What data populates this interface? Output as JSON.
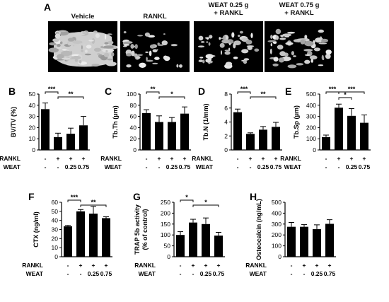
{
  "panel_a": {
    "letter": "A",
    "groups": [
      {
        "title_lines": [
          "Vehicle"
        ]
      },
      {
        "title_lines": [
          "RANKL"
        ]
      },
      {
        "title_lines": [
          "WEAT 0.25 g",
          "+ RANKL"
        ]
      },
      {
        "title_lines": [
          "WEAT 0.75 g",
          "+ RANKL"
        ]
      }
    ]
  },
  "treatment_rows": {
    "rankl_label": "RANKL",
    "weat_label": "WEAT",
    "rankl": [
      "-",
      "+",
      "+",
      "+"
    ],
    "weat": [
      "-",
      "-",
      "0.25",
      "0.75"
    ]
  },
  "colors": {
    "bar": "#000000",
    "axis": "#000000"
  },
  "chart_data": [
    {
      "panel": "B",
      "type": "bar",
      "ylabel": "BV/TV (%)",
      "ylim": [
        0,
        50
      ],
      "yticks": [
        0,
        10,
        20,
        30,
        40,
        50
      ],
      "values": [
        36.5,
        11.5,
        14.5,
        22
      ],
      "errors": [
        5.5,
        3.5,
        5,
        8
      ],
      "significance": [
        {
          "from": 0,
          "to": 1,
          "label": "***"
        },
        {
          "from": 1,
          "to": 3,
          "label": "**"
        }
      ]
    },
    {
      "panel": "C",
      "type": "bar",
      "ylabel": "Tb.Th (μm)",
      "ylim": [
        0,
        100
      ],
      "yticks": [
        0,
        20,
        40,
        60,
        80,
        100
      ],
      "values": [
        66,
        50,
        50,
        65
      ],
      "errors": [
        6,
        11,
        8,
        12
      ],
      "significance": [
        {
          "from": 0,
          "to": 1,
          "label": "**"
        },
        {
          "from": 1,
          "to": 3,
          "label": "*"
        }
      ]
    },
    {
      "panel": "D",
      "type": "bar",
      "ylabel": "Tb.N (1/mm)",
      "ylim": [
        0,
        8
      ],
      "yticks": [
        0,
        2,
        4,
        6,
        8
      ],
      "values": [
        5.4,
        2.3,
        2.9,
        3.3
      ],
      "errors": [
        0.45,
        0.15,
        0.45,
        0.65
      ],
      "significance": [
        {
          "from": 0,
          "to": 1,
          "label": "***"
        },
        {
          "from": 1,
          "to": 3,
          "label": "**"
        }
      ]
    },
    {
      "panel": "E",
      "type": "bar",
      "ylabel": "Tb.Sp (μm)",
      "ylim": [
        0,
        500
      ],
      "yticks": [
        0,
        100,
        200,
        300,
        400,
        500
      ],
      "values": [
        115,
        378,
        305,
        243
      ],
      "errors": [
        18,
        32,
        65,
        70
      ],
      "significance": [
        {
          "from": 0,
          "to": 1,
          "label": "***"
        },
        {
          "from": 1,
          "to": 2,
          "label": "*"
        },
        {
          "from": 1,
          "to": 3,
          "label": "***"
        }
      ]
    },
    {
      "panel": "F",
      "type": "bar",
      "ylabel": "CTX (ng/ml)",
      "ylim": [
        0,
        60
      ],
      "yticks": [
        0,
        10,
        20,
        30,
        40,
        50,
        60
      ],
      "values": [
        33.5,
        50,
        47.5,
        42.5
      ],
      "errors": [
        1,
        2,
        8,
        1.5
      ],
      "significance": [
        {
          "from": 0,
          "to": 1,
          "label": "***"
        },
        {
          "from": 1,
          "to": 3,
          "label": "**"
        }
      ]
    },
    {
      "panel": "G",
      "type": "bar",
      "ylabel": "TRAP 5b activity",
      "ylabel2": "(% of control)",
      "ylim": [
        0,
        250
      ],
      "yticks": [
        0,
        50,
        100,
        150,
        200,
        250
      ],
      "values": [
        100,
        157,
        150,
        97
      ],
      "errors": [
        15,
        15,
        28,
        15
      ],
      "significance": [
        {
          "from": 0,
          "to": 1,
          "label": "*"
        },
        {
          "from": 1,
          "to": 3,
          "label": "*"
        }
      ]
    },
    {
      "panel": "H",
      "type": "bar",
      "ylabel": "Osteocalcin (ng/mL)",
      "ylim": [
        0,
        500
      ],
      "yticks": [
        0,
        100,
        200,
        300,
        400,
        500
      ],
      "values": [
        275,
        275,
        253,
        302
      ],
      "errors": [
        40,
        20,
        40,
        38
      ],
      "significance": []
    }
  ]
}
